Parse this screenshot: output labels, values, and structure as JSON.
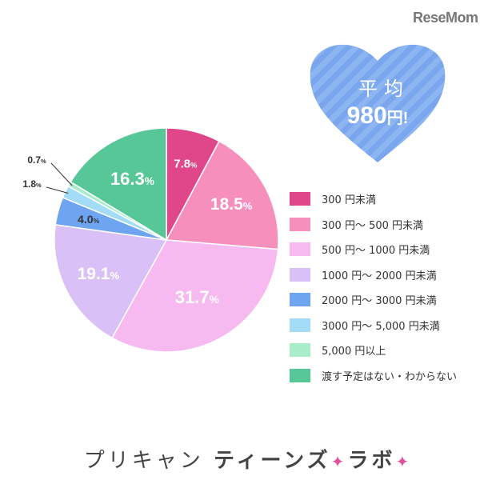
{
  "logo": "ReseMom",
  "heart": {
    "line1": "平均",
    "value": "980",
    "unit": "円!"
  },
  "colors": {
    "heart": "#7aa6ee",
    "heart_stripe": "#8db5f2"
  },
  "chart_data": {
    "type": "pie",
    "start": "12 o'clock, clockwise",
    "slices": [
      {
        "label": "300 円未満",
        "value": 7.8,
        "value_text": "7.8",
        "color": "#e0468a"
      },
      {
        "label": "300 円～ 500 円未満",
        "value": 18.5,
        "value_text": "18.5",
        "color": "#f78fbd"
      },
      {
        "label": "500 円～ 1000 円未満",
        "value": 31.7,
        "value_text": "31.7",
        "color": "#f7baf0"
      },
      {
        "label": "1000 円～ 2000 円未満",
        "value": 19.1,
        "value_text": "19.1",
        "color": "#d9c1f7"
      },
      {
        "label": "2000 円～ 3000 円未満",
        "value": 4.0,
        "value_text": "4.0",
        "color": "#6ea4f0"
      },
      {
        "label": "3000 円～ 5,000 円未満",
        "value": 1.8,
        "value_text": "1.8",
        "color": "#a3dcf7"
      },
      {
        "label": "5,000 円以上",
        "value": 0.7,
        "value_text": "0.7",
        "color": "#a8ecca"
      },
      {
        "label": "渡す予定はない・わからない",
        "value": 16.3,
        "value_text": "16.3",
        "color": "#58c797"
      }
    ],
    "percent_symbol": "%"
  },
  "footer": {
    "text1": "プリキャン",
    "text2": "ティーンズ",
    "sparkle": "✦",
    "text3": "ラボ"
  }
}
